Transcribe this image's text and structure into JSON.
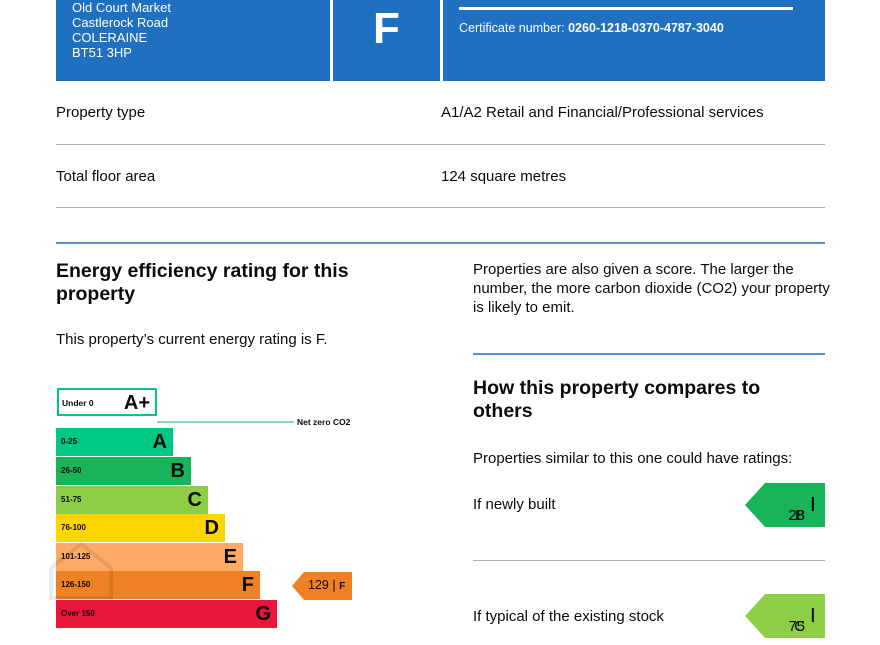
{
  "header": {
    "address_lines": [
      "Old Court Market",
      "Castlerock Road",
      "COLERAINE",
      "BT51 3HP"
    ],
    "current_rating_letter": "F",
    "certificate_label": "Certificate number:",
    "certificate_number": "0260-1218-0370-4787-3040"
  },
  "property_type": {
    "label": "Property type",
    "value": "A1/A2 Retail and Financial/Professional services"
  },
  "floor_area": {
    "label": "Total floor area",
    "value": "124 square metres"
  },
  "efficiency": {
    "heading": "Energy efficiency rating for this property",
    "statement": "This property’s current energy rating is F."
  },
  "score_info": "Properties are also given a score. The larger the number, the more carbon dioxide (CO2) your property is likely to emit.",
  "scale": {
    "aplus": {
      "range": "Under 0",
      "letter": "A+"
    },
    "net_zero_label": "Net zero CO2",
    "bands": [
      {
        "range": "0-25",
        "letter": "A",
        "color": "#00c781"
      },
      {
        "range": "26-50",
        "letter": "B",
        "color": "#19b459"
      },
      {
        "range": "51-75",
        "letter": "C",
        "color": "#8dce46"
      },
      {
        "range": "76-100",
        "letter": "D",
        "color": "#ffd500"
      },
      {
        "range": "101-125",
        "letter": "E",
        "color": "#fcaa65"
      },
      {
        "range": "126-150",
        "letter": "F",
        "color": "#ef8023"
      },
      {
        "range": "Over 150",
        "letter": "G",
        "color": "#e9153b"
      }
    ],
    "current": {
      "score": "129",
      "letter": "F",
      "color": "#ef8023"
    }
  },
  "compare": {
    "heading": "How this property compares to others",
    "intro": "Properties similar to this one could have ratings:",
    "newly_built": {
      "label": "If newly built",
      "score": "28",
      "letter": "B",
      "color": "#19b459"
    },
    "typical": {
      "label": "If typical of the existing stock",
      "score": "75",
      "letter": "C",
      "color": "#8dce46"
    }
  }
}
